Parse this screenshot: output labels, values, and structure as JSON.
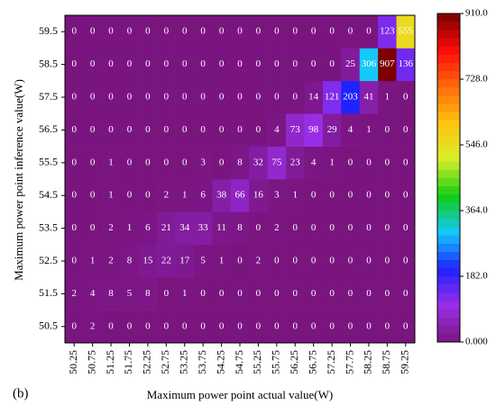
{
  "chart_data": {
    "type": "heatmap",
    "x_label": "Maximum power point actual value(W)",
    "y_label": "Maximum power point inference value(W)",
    "panel_label": "(b)",
    "x": [
      "50.25",
      "50.75",
      "51.25",
      "51.75",
      "52.25",
      "52.75",
      "53.25",
      "53.75",
      "54.25",
      "54.75",
      "55.25",
      "55.75",
      "56.25",
      "56.75",
      "57.25",
      "57.75",
      "58.25",
      "58.75",
      "59.25"
    ],
    "y": [
      "50.5",
      "51.5",
      "52.5",
      "53.5",
      "54.5",
      "55.5",
      "56.5",
      "57.5",
      "58.5",
      "59.5"
    ],
    "z": [
      [
        0,
        2,
        0,
        0,
        0,
        0,
        0,
        0,
        0,
        0,
        0,
        0,
        0,
        0,
        0,
        0,
        0,
        0,
        0
      ],
      [
        2,
        4,
        8,
        5,
        8,
        0,
        1,
        0,
        0,
        0,
        0,
        0,
        0,
        0,
        0,
        0,
        0,
        0,
        0
      ],
      [
        0,
        1,
        2,
        8,
        15,
        22,
        17,
        5,
        1,
        0,
        2,
        0,
        0,
        0,
        0,
        0,
        0,
        0,
        0
      ],
      [
        0,
        0,
        2,
        1,
        6,
        21,
        34,
        33,
        11,
        8,
        0,
        2,
        0,
        0,
        0,
        0,
        0,
        0,
        0
      ],
      [
        0,
        0,
        1,
        0,
        0,
        2,
        1,
        6,
        38,
        66,
        16,
        3,
        1,
        0,
        0,
        0,
        0,
        0,
        0
      ],
      [
        0,
        0,
        1,
        0,
        0,
        0,
        0,
        3,
        0,
        8,
        32,
        75,
        23,
        4,
        1,
        0,
        0,
        0,
        0
      ],
      [
        0,
        0,
        0,
        0,
        0,
        0,
        0,
        0,
        0,
        0,
        0,
        4,
        73,
        98,
        29,
        4,
        1,
        0,
        0
      ],
      [
        0,
        0,
        0,
        0,
        0,
        0,
        0,
        0,
        0,
        0,
        0,
        0,
        0,
        14,
        121,
        203,
        41,
        1,
        0
      ],
      [
        0,
        0,
        0,
        0,
        0,
        0,
        0,
        0,
        0,
        0,
        0,
        0,
        0,
        0,
        0,
        25,
        306,
        907,
        136
      ],
      [
        0,
        0,
        0,
        0,
        0,
        0,
        0,
        0,
        0,
        0,
        0,
        0,
        0,
        0,
        0,
        0,
        0,
        123,
        555
      ]
    ],
    "zlim": [
      0,
      910
    ],
    "colorbar_ticks": [
      {
        "value": 0,
        "label": "0.000"
      },
      {
        "value": 182,
        "label": "182.0"
      },
      {
        "value": 364,
        "label": "364.0"
      },
      {
        "value": 546,
        "label": "546.0"
      },
      {
        "value": 728,
        "label": "728.0"
      },
      {
        "value": 910,
        "label": "910.0"
      }
    ],
    "colormap": [
      "#7a1580",
      "#9a2ee8",
      "#1f22ff",
      "#14c8ff",
      "#10cc10",
      "#d8ef2a",
      "#ffc410",
      "#ff6a0a",
      "#ff0a0a",
      "#780000"
    ]
  }
}
